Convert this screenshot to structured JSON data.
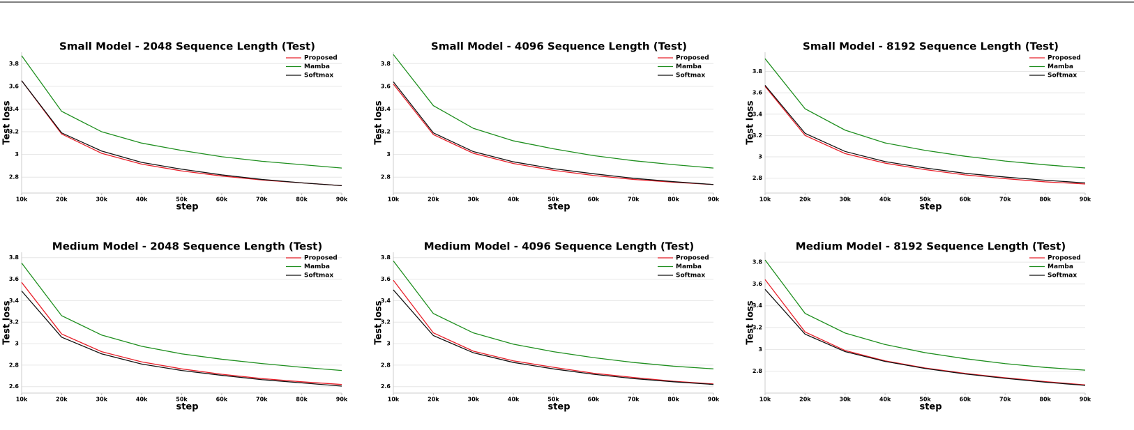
{
  "chart_data": [
    {
      "type": "line",
      "title": "Small Model - 2048 Sequence Length (Test)",
      "xlabel": "step",
      "ylabel": "Test loss",
      "x": [
        10000,
        20000,
        30000,
        40000,
        50000,
        60000,
        70000,
        80000,
        90000
      ],
      "xlim": [
        10000,
        90000
      ],
      "xticks": [
        {
          "value": 10000,
          "label": "10k"
        },
        {
          "value": 20000,
          "label": "20k"
        },
        {
          "value": 30000,
          "label": "30k"
        },
        {
          "value": 40000,
          "label": "40k"
        },
        {
          "value": 50000,
          "label": "50k"
        },
        {
          "value": 60000,
          "label": "60k"
        },
        {
          "value": 70000,
          "label": "70k"
        },
        {
          "value": 80000,
          "label": "80k"
        },
        {
          "value": 90000,
          "label": "90k"
        }
      ],
      "ylim": [
        2.66,
        3.9
      ],
      "yticks": [
        2.8,
        3,
        3.2,
        3.4,
        3.6,
        3.8
      ],
      "grid": true,
      "legend": "upper right",
      "series": [
        {
          "name": "Proposed",
          "color": "#e8202a",
          "values": [
            3.65,
            3.18,
            3.01,
            2.915,
            2.855,
            2.81,
            2.775,
            2.75,
            2.725
          ]
        },
        {
          "name": "Mamba",
          "color": "#1f8f1f",
          "values": [
            3.87,
            3.38,
            3.2,
            3.1,
            3.035,
            2.98,
            2.94,
            2.91,
            2.88
          ]
        },
        {
          "name": "Softmax",
          "color": "#111111",
          "values": [
            3.65,
            3.19,
            3.03,
            2.93,
            2.87,
            2.82,
            2.78,
            2.75,
            2.725
          ]
        }
      ]
    },
    {
      "type": "line",
      "title": "Small Model - 4096 Sequence Length (Test)",
      "xlabel": "step",
      "ylabel": "Test loss",
      "x": [
        10000,
        20000,
        30000,
        40000,
        50000,
        60000,
        70000,
        80000,
        90000
      ],
      "xlim": [
        10000,
        90000
      ],
      "xticks": [
        {
          "value": 10000,
          "label": "10k"
        },
        {
          "value": 20000,
          "label": "20k"
        },
        {
          "value": 30000,
          "label": "30k"
        },
        {
          "value": 40000,
          "label": "40k"
        },
        {
          "value": 50000,
          "label": "50k"
        },
        {
          "value": 60000,
          "label": "60k"
        },
        {
          "value": 70000,
          "label": "70k"
        },
        {
          "value": 80000,
          "label": "80k"
        },
        {
          "value": 90000,
          "label": "90k"
        }
      ],
      "ylim": [
        2.66,
        3.9
      ],
      "yticks": [
        2.8,
        3,
        3.2,
        3.4,
        3.6,
        3.8
      ],
      "grid": true,
      "legend": "upper right",
      "series": [
        {
          "name": "Proposed",
          "color": "#e8202a",
          "values": [
            3.62,
            3.175,
            3.01,
            2.92,
            2.86,
            2.815,
            2.78,
            2.755,
            2.735
          ]
        },
        {
          "name": "Mamba",
          "color": "#1f8f1f",
          "values": [
            3.88,
            3.43,
            3.23,
            3.12,
            3.05,
            2.99,
            2.945,
            2.91,
            2.88
          ]
        },
        {
          "name": "Softmax",
          "color": "#111111",
          "values": [
            3.64,
            3.19,
            3.025,
            2.935,
            2.875,
            2.83,
            2.79,
            2.76,
            2.735
          ]
        }
      ]
    },
    {
      "type": "line",
      "title": "Small Model - 8192 Sequence Length (Test)",
      "xlabel": "step",
      "ylabel": "Test loss",
      "x": [
        10000,
        20000,
        30000,
        40000,
        50000,
        60000,
        70000,
        80000,
        90000
      ],
      "xlim": [
        10000,
        90000
      ],
      "xticks": [
        {
          "value": 10000,
          "label": "10k"
        },
        {
          "value": 20000,
          "label": "20k"
        },
        {
          "value": 30000,
          "label": "30k"
        },
        {
          "value": 40000,
          "label": "40k"
        },
        {
          "value": 50000,
          "label": "50k"
        },
        {
          "value": 60000,
          "label": "60k"
        },
        {
          "value": 70000,
          "label": "70k"
        },
        {
          "value": 80000,
          "label": "80k"
        },
        {
          "value": 90000,
          "label": "90k"
        }
      ],
      "ylim": [
        2.66,
        3.98
      ],
      "yticks": [
        2.8,
        3,
        3.2,
        3.4,
        3.6,
        3.8
      ],
      "grid": true,
      "legend": "upper right",
      "series": [
        {
          "name": "Proposed",
          "color": "#e8202a",
          "values": [
            3.66,
            3.2,
            3.03,
            2.94,
            2.88,
            2.83,
            2.795,
            2.765,
            2.745
          ]
        },
        {
          "name": "Mamba",
          "color": "#1f8f1f",
          "values": [
            3.92,
            3.45,
            3.25,
            3.13,
            3.06,
            3.005,
            2.96,
            2.925,
            2.895
          ]
        },
        {
          "name": "Softmax",
          "color": "#111111",
          "values": [
            3.67,
            3.22,
            3.05,
            2.955,
            2.895,
            2.845,
            2.81,
            2.78,
            2.755
          ]
        }
      ]
    },
    {
      "type": "line",
      "title": "Medium Model - 2048 Sequence Length (Test)",
      "xlabel": "step",
      "ylabel": "Test loss",
      "x": [
        10000,
        20000,
        30000,
        40000,
        50000,
        60000,
        70000,
        80000,
        90000
      ],
      "xlim": [
        10000,
        90000
      ],
      "xticks": [
        {
          "value": 10000,
          "label": "10k"
        },
        {
          "value": 20000,
          "label": "20k"
        },
        {
          "value": 30000,
          "label": "30k"
        },
        {
          "value": 40000,
          "label": "40k"
        },
        {
          "value": 50000,
          "label": "50k"
        },
        {
          "value": 60000,
          "label": "60k"
        },
        {
          "value": 70000,
          "label": "70k"
        },
        {
          "value": 80000,
          "label": "80k"
        },
        {
          "value": 90000,
          "label": "90k"
        }
      ],
      "ylim": [
        2.54,
        3.85
      ],
      "yticks": [
        2.6,
        2.8,
        3,
        3.2,
        3.4,
        3.6,
        3.8
      ],
      "grid": true,
      "legend": "upper right",
      "series": [
        {
          "name": "Proposed",
          "color": "#e8202a",
          "values": [
            3.57,
            3.09,
            2.925,
            2.83,
            2.765,
            2.715,
            2.675,
            2.645,
            2.62
          ]
        },
        {
          "name": "Mamba",
          "color": "#1f8f1f",
          "values": [
            3.75,
            3.26,
            3.08,
            2.975,
            2.905,
            2.855,
            2.815,
            2.78,
            2.75
          ]
        },
        {
          "name": "Softmax",
          "color": "#111111",
          "values": [
            3.49,
            3.06,
            2.905,
            2.81,
            2.75,
            2.705,
            2.665,
            2.635,
            2.605
          ]
        }
      ]
    },
    {
      "type": "line",
      "title": "Medium Model - 4096 Sequence Length (Test)",
      "xlabel": "step",
      "ylabel": "Test loss",
      "x": [
        10000,
        20000,
        30000,
        40000,
        50000,
        60000,
        70000,
        80000,
        90000
      ],
      "xlim": [
        10000,
        90000
      ],
      "xticks": [
        {
          "value": 10000,
          "label": "10k"
        },
        {
          "value": 20000,
          "label": "20k"
        },
        {
          "value": 30000,
          "label": "30k"
        },
        {
          "value": 40000,
          "label": "40k"
        },
        {
          "value": 50000,
          "label": "50k"
        },
        {
          "value": 60000,
          "label": "60k"
        },
        {
          "value": 70000,
          "label": "70k"
        },
        {
          "value": 80000,
          "label": "80k"
        },
        {
          "value": 90000,
          "label": "90k"
        }
      ],
      "ylim": [
        2.54,
        3.85
      ],
      "yticks": [
        2.6,
        2.8,
        3,
        3.2,
        3.4,
        3.6,
        3.8
      ],
      "grid": true,
      "legend": "upper right",
      "series": [
        {
          "name": "Proposed",
          "color": "#e8202a",
          "values": [
            3.59,
            3.1,
            2.93,
            2.84,
            2.78,
            2.725,
            2.685,
            2.65,
            2.625
          ]
        },
        {
          "name": "Mamba",
          "color": "#1f8f1f",
          "values": [
            3.77,
            3.28,
            3.1,
            2.995,
            2.925,
            2.87,
            2.825,
            2.79,
            2.765
          ]
        },
        {
          "name": "Softmax",
          "color": "#111111",
          "values": [
            3.5,
            3.075,
            2.915,
            2.825,
            2.765,
            2.715,
            2.675,
            2.645,
            2.62
          ]
        }
      ]
    },
    {
      "type": "line",
      "title": "Medium Model - 8192 Sequence Length (Test)",
      "xlabel": "step",
      "ylabel": "Test loss",
      "x": [
        10000,
        20000,
        30000,
        40000,
        50000,
        60000,
        70000,
        80000,
        90000
      ],
      "xlim": [
        10000,
        90000
      ],
      "xticks": [
        {
          "value": 10000,
          "label": "10k"
        },
        {
          "value": 20000,
          "label": "20k"
        },
        {
          "value": 30000,
          "label": "30k"
        },
        {
          "value": 40000,
          "label": "40k"
        },
        {
          "value": 50000,
          "label": "50k"
        },
        {
          "value": 60000,
          "label": "60k"
        },
        {
          "value": 70000,
          "label": "70k"
        },
        {
          "value": 80000,
          "label": "80k"
        },
        {
          "value": 90000,
          "label": "90k"
        }
      ],
      "ylim": [
        2.6,
        3.89
      ],
      "yticks": [
        2.8,
        3,
        3.2,
        3.4,
        3.6,
        3.8
      ],
      "grid": true,
      "legend": "upper right",
      "series": [
        {
          "name": "Proposed",
          "color": "#e8202a",
          "values": [
            3.64,
            3.16,
            2.99,
            2.895,
            2.83,
            2.78,
            2.74,
            2.705,
            2.675
          ]
        },
        {
          "name": "Mamba",
          "color": "#1f8f1f",
          "values": [
            3.82,
            3.33,
            3.15,
            3.045,
            2.97,
            2.915,
            2.87,
            2.835,
            2.81
          ]
        },
        {
          "name": "Softmax",
          "color": "#111111",
          "values": [
            3.55,
            3.14,
            2.98,
            2.89,
            2.825,
            2.775,
            2.735,
            2.7,
            2.67
          ]
        }
      ]
    }
  ]
}
